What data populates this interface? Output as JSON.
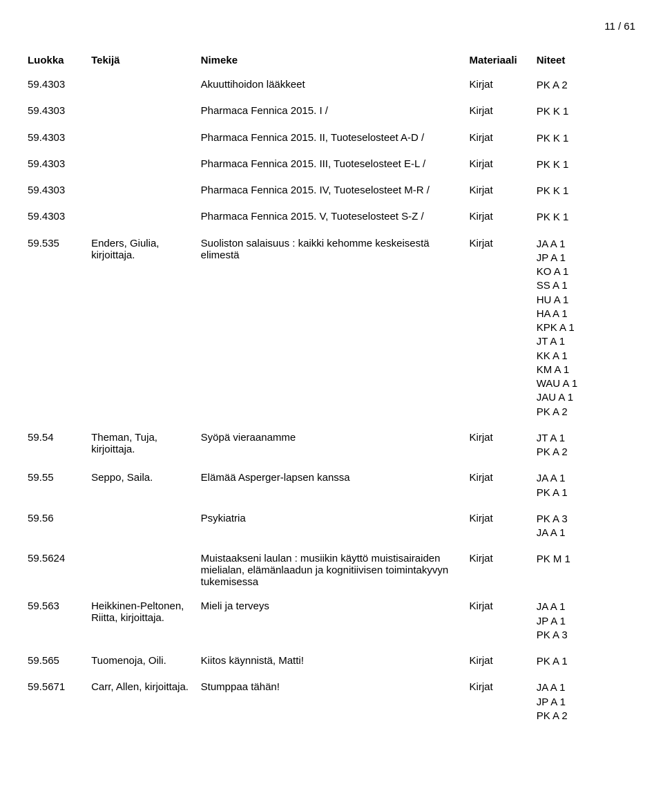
{
  "page_number": "11 / 61",
  "headers": {
    "luokka": "Luokka",
    "tekija": "Tekijä",
    "nimeke": "Nimeke",
    "materiaali": "Materiaali",
    "niteet": "Niteet"
  },
  "rows": [
    {
      "luokka": "59.4303",
      "tekija": "",
      "nimeke": "Akuuttihoidon lääkkeet",
      "materiaali": "Kirjat",
      "niteet": [
        "PK A 2"
      ]
    },
    {
      "luokka": "59.4303",
      "tekija": "",
      "nimeke": "Pharmaca Fennica 2015. I /",
      "materiaali": "Kirjat",
      "niteet": [
        "PK K 1"
      ]
    },
    {
      "luokka": "59.4303",
      "tekija": "",
      "nimeke": "Pharmaca Fennica 2015. II, Tuoteselosteet A-D /",
      "materiaali": "Kirjat",
      "niteet": [
        "PK K 1"
      ]
    },
    {
      "luokka": "59.4303",
      "tekija": "",
      "nimeke": "Pharmaca Fennica 2015. III, Tuoteselosteet E-L /",
      "materiaali": "Kirjat",
      "niteet": [
        "PK K 1"
      ]
    },
    {
      "luokka": "59.4303",
      "tekija": "",
      "nimeke": "Pharmaca Fennica 2015. IV, Tuoteselosteet M-R /",
      "materiaali": "Kirjat",
      "niteet": [
        "PK K 1"
      ]
    },
    {
      "luokka": "59.4303",
      "tekija": "",
      "nimeke": "Pharmaca Fennica 2015. V, Tuoteselosteet S-Z /",
      "materiaali": "Kirjat",
      "niteet": [
        "PK K 1"
      ]
    },
    {
      "luokka": "59.535",
      "tekija": "Enders, Giulia, kirjoittaja.",
      "nimeke": "Suoliston salaisuus : kaikki kehomme keskeisestä elimestä",
      "materiaali": "Kirjat",
      "niteet": [
        "JA A 1",
        "JP A 1",
        "KO A 1",
        "SS A 1",
        "HU A 1",
        "HA A 1",
        "KPK A 1",
        "JT A 1",
        "KK A 1",
        "KM A 1",
        "WAU A 1",
        "JAU A 1",
        "PK A 2"
      ]
    },
    {
      "luokka": "59.54",
      "tekija": "Theman, Tuja, kirjoittaja.",
      "nimeke": "Syöpä vieraanamme",
      "materiaali": "Kirjat",
      "niteet": [
        "JT A 1",
        "PK A 2"
      ]
    },
    {
      "luokka": "59.55",
      "tekija": "Seppo, Saila.",
      "nimeke": "Elämää Asperger-lapsen kanssa",
      "materiaali": "Kirjat",
      "niteet": [
        "JA A 1",
        "PK A 1"
      ]
    },
    {
      "luokka": "59.56",
      "tekija": "",
      "nimeke": "Psykiatria",
      "materiaali": "Kirjat",
      "niteet": [
        "PK A 3",
        "JA A 1"
      ]
    },
    {
      "luokka": "59.5624",
      "tekija": "",
      "nimeke": "Muistaakseni laulan : musiikin käyttö muistisairaiden mielialan, elämänlaadun ja kognitiivisen toimintakyvyn tukemisessa",
      "materiaali": "Kirjat",
      "niteet": [
        "PK M 1"
      ]
    },
    {
      "luokka": "59.563",
      "tekija": "Heikkinen-Peltonen, Riitta, kirjoittaja.",
      "nimeke": "Mieli ja terveys",
      "materiaali": "Kirjat",
      "niteet": [
        "JA A 1",
        "JP A 1",
        "PK A 3"
      ]
    },
    {
      "luokka": "59.565",
      "tekija": "Tuomenoja, Oili.",
      "nimeke": "Kiitos käynnistä, Matti!",
      "materiaali": "Kirjat",
      "niteet": [
        "PK A 1"
      ]
    },
    {
      "luokka": "59.5671",
      "tekija": "Carr, Allen, kirjoittaja.",
      "nimeke": "Stumppaa tähän!",
      "materiaali": "Kirjat",
      "niteet": [
        "JA A 1",
        "JP A 1",
        "PK A 2"
      ]
    }
  ]
}
